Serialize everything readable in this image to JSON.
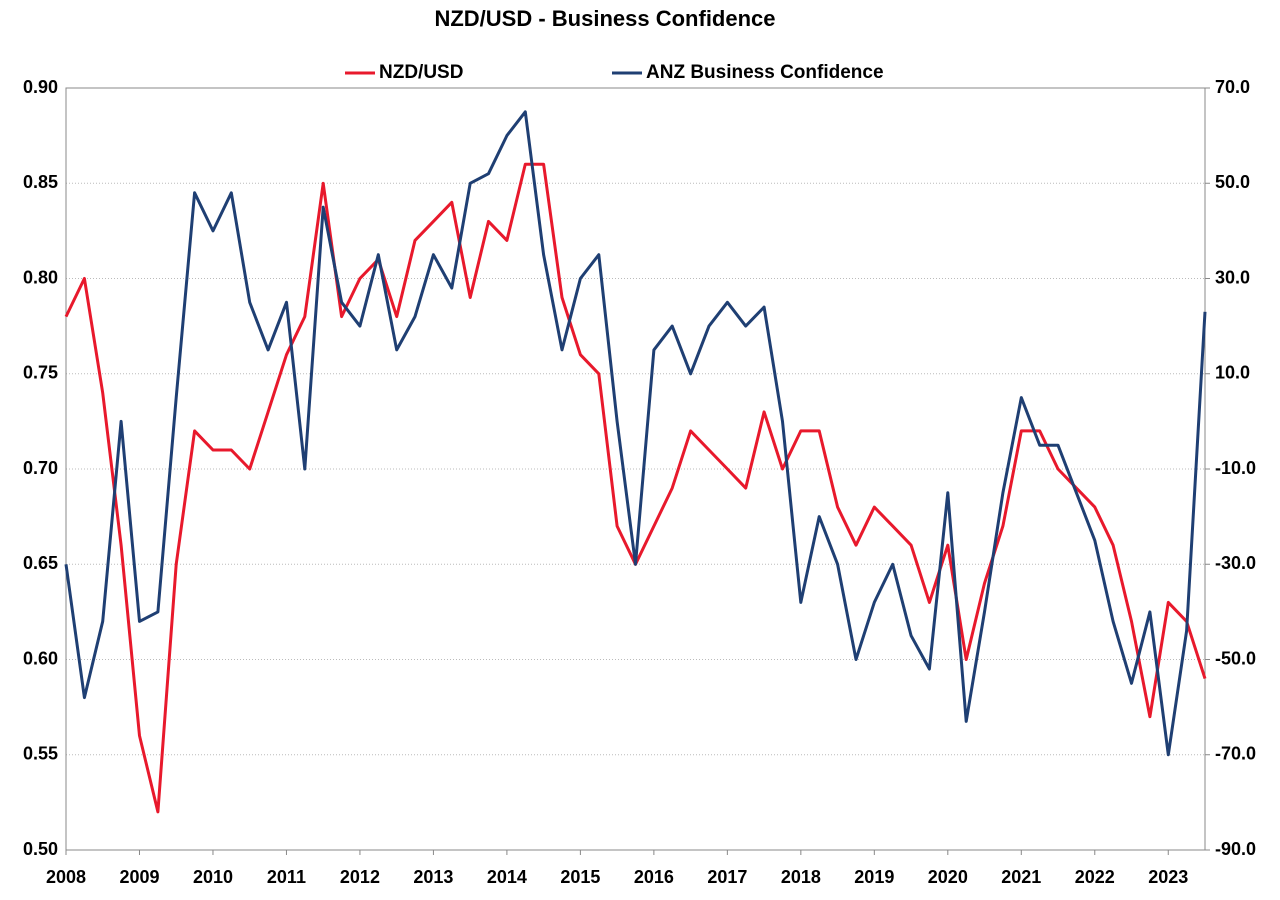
{
  "chart_data": {
    "type": "line",
    "title": "NZD/USD - Business Confidence",
    "x": [
      2008,
      2008.25,
      2008.5,
      2008.75,
      2009,
      2009.25,
      2009.5,
      2009.75,
      2010,
      2010.25,
      2010.5,
      2010.75,
      2011,
      2011.25,
      2011.5,
      2011.75,
      2012,
      2012.25,
      2012.5,
      2012.75,
      2013,
      2013.25,
      2013.5,
      2013.75,
      2014,
      2014.25,
      2014.5,
      2014.75,
      2015,
      2015.25,
      2015.5,
      2015.75,
      2016,
      2016.25,
      2016.5,
      2016.75,
      2017,
      2017.25,
      2017.5,
      2017.75,
      2018,
      2018.25,
      2018.5,
      2018.75,
      2019,
      2019.25,
      2019.5,
      2019.75,
      2020,
      2020.25,
      2020.5,
      2020.75,
      2021,
      2021.25,
      2021.5,
      2021.75,
      2022,
      2022.25,
      2022.5,
      2022.75,
      2023,
      2023.25,
      2023.5
    ],
    "series": [
      {
        "name": "NZD/USD",
        "color": "#e8192c",
        "axis": "y",
        "values": [
          0.78,
          0.8,
          0.74,
          0.66,
          0.56,
          0.52,
          0.65,
          0.72,
          0.71,
          0.71,
          0.7,
          0.73,
          0.76,
          0.78,
          0.85,
          0.78,
          0.8,
          0.81,
          0.78,
          0.82,
          0.83,
          0.84,
          0.79,
          0.83,
          0.82,
          0.86,
          0.86,
          0.79,
          0.76,
          0.75,
          0.67,
          0.65,
          0.67,
          0.69,
          0.72,
          0.71,
          0.7,
          0.69,
          0.73,
          0.7,
          0.72,
          0.72,
          0.68,
          0.66,
          0.68,
          0.67,
          0.66,
          0.63,
          0.66,
          0.6,
          0.64,
          0.67,
          0.72,
          0.72,
          0.7,
          0.69,
          0.68,
          0.66,
          0.62,
          0.57,
          0.63,
          0.62,
          0.59
        ]
      },
      {
        "name": "ANZ Business Confidence",
        "color": "#1f3f73",
        "axis": "y2",
        "values": [
          -30,
          -58,
          -42,
          0,
          -42,
          -40,
          5,
          48,
          40,
          48,
          25,
          15,
          25,
          -10,
          45,
          25,
          20,
          35,
          15,
          22,
          35,
          28,
          50,
          52,
          60,
          65,
          35,
          15,
          30,
          35,
          0,
          -30,
          15,
          20,
          10,
          20,
          25,
          20,
          24,
          0,
          -38,
          -20,
          -30,
          -50,
          -38,
          -30,
          -45,
          -52,
          -15,
          -63,
          -40,
          -15,
          5,
          -5,
          -5,
          -15,
          -25,
          -42,
          -55,
          -40,
          -70,
          -44,
          23
        ]
      }
    ],
    "xlim": [
      2008,
      2023.5
    ],
    "xticks": [
      2008,
      2009,
      2010,
      2011,
      2012,
      2013,
      2014,
      2015,
      2016,
      2017,
      2018,
      2019,
      2020,
      2021,
      2022,
      2023
    ],
    "ylim": [
      0.5,
      0.9
    ],
    "yticks": [
      {
        "value": 0.5,
        "label": "0.50"
      },
      0.55,
      {
        "value": 0.6,
        "label": "0.60"
      },
      0.65,
      {
        "value": 0.7,
        "label": "0.70"
      },
      0.75,
      {
        "value": 0.8,
        "label": "0.80"
      },
      0.85,
      {
        "value": 0.9,
        "label": "0.90"
      }
    ],
    "y2lim": [
      -90,
      70
    ],
    "y2ticks": [
      {
        "value": -90,
        "label": "-90.0"
      },
      {
        "value": -70,
        "label": "-70.0"
      },
      {
        "value": -50,
        "label": "-50.0"
      },
      {
        "value": -30,
        "label": "-30.0"
      },
      {
        "value": -10,
        "label": "-10.0"
      },
      {
        "value": 10,
        "label": "10.0"
      },
      {
        "value": 30,
        "label": "30.0"
      },
      {
        "value": 50,
        "label": "50.0"
      },
      {
        "value": 70,
        "label": "70.0"
      }
    ],
    "grid": true,
    "legend": "top"
  }
}
